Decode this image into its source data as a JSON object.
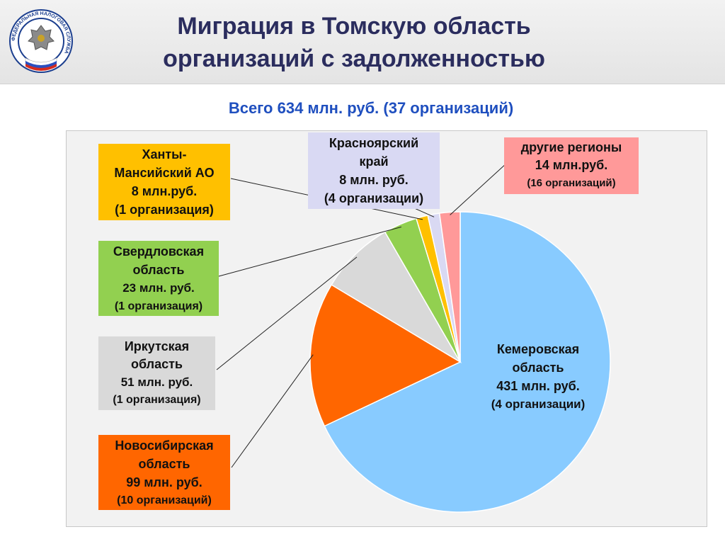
{
  "header": {
    "title_line1": "Миграция в Томскую область",
    "title_line2": "организаций с задолженностью",
    "logo_text": "ФЕДЕРАЛЬНАЯ НАЛОГОВАЯ СЛУЖБА"
  },
  "subtitle": "Всего 634 млн. руб.  (37 организаций)",
  "colors": {
    "title": "#2b2d5e",
    "subtitle": "#1f4fbf"
  },
  "chart_data": {
    "type": "pie",
    "title": "Всего 634 млн. руб.  (37 организаций)",
    "start": "12 o'clock, clockwise",
    "slices": [
      {
        "name": "Кемеровская область",
        "value": 431,
        "unit": "млн. руб.",
        "orgs": 4,
        "color": "#88cbff",
        "label": [
          "Кемеровская",
          "область",
          "431 млн. руб.",
          "(4 организации)"
        ]
      },
      {
        "name": "Новосибирская область",
        "value": 99,
        "unit": "млн. руб.",
        "orgs": 10,
        "color": "#ff6600",
        "label": [
          "Новосибирская",
          "область",
          "99 млн. руб.",
          "(10 организаций)"
        ]
      },
      {
        "name": "Иркутская область",
        "value": 51,
        "unit": "млн. руб.",
        "orgs": 1,
        "color": "#d9d9d9",
        "label": [
          "Иркутская",
          "область",
          "51 млн. руб.",
          "(1 организация)"
        ]
      },
      {
        "name": "Свердловская область",
        "value": 23,
        "unit": "млн. руб.",
        "orgs": 1,
        "color": "#92d050",
        "label": [
          "Свердловская",
          "область",
          "23 млн. руб.",
          "(1 организация)"
        ]
      },
      {
        "name": "Ханты-Мансийский АО",
        "value": 8,
        "unit": "млн.руб.",
        "orgs": 1,
        "color": "#ffc000",
        "label": [
          "Ханты-",
          "Мансийский АО",
          "8 млн.руб.",
          "(1 организация)"
        ]
      },
      {
        "name": "Красноярский край",
        "value": 8,
        "unit": "млн. руб.",
        "orgs": 4,
        "color": "#d9d9f3",
        "label": [
          "Красноярский",
          "край",
          "8 млн. руб.",
          "(4 организации)"
        ]
      },
      {
        "name": "другие регионы",
        "value": 14,
        "unit": "млн.руб.",
        "orgs": 16,
        "color": "#ff9999",
        "label": [
          "другие регионы",
          "14 млн.руб.",
          "(16 организаций)"
        ]
      }
    ]
  }
}
